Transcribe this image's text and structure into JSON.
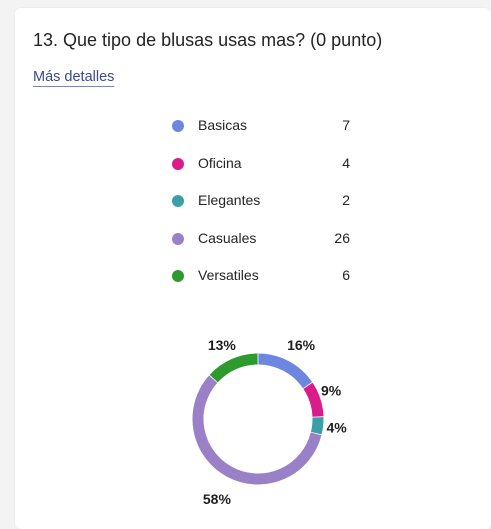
{
  "question": {
    "title": "13. Que tipo de blusas usas mas? (0 punto)",
    "details_link": "Más detalles"
  },
  "legend": [
    {
      "label": "Basicas",
      "count": "7"
    },
    {
      "label": "Oficina",
      "count": "4"
    },
    {
      "label": "Elegantes",
      "count": "2"
    },
    {
      "label": "Casuales",
      "count": "26"
    },
    {
      "label": "Versatiles",
      "count": "6"
    }
  ],
  "chart_data": {
    "type": "pie",
    "donut": true,
    "categories": [
      "Basicas",
      "Oficina",
      "Elegantes",
      "Casuales",
      "Versatiles"
    ],
    "values": [
      7,
      4,
      2,
      26,
      6
    ],
    "percent_labels": [
      "16%",
      "9%",
      "4%",
      "58%",
      "13%"
    ],
    "colors": [
      "#6d86e0",
      "#dc1b8a",
      "#3aa0a6",
      "#9a80c6",
      "#2e9a2e"
    ],
    "legend_position": "top"
  }
}
